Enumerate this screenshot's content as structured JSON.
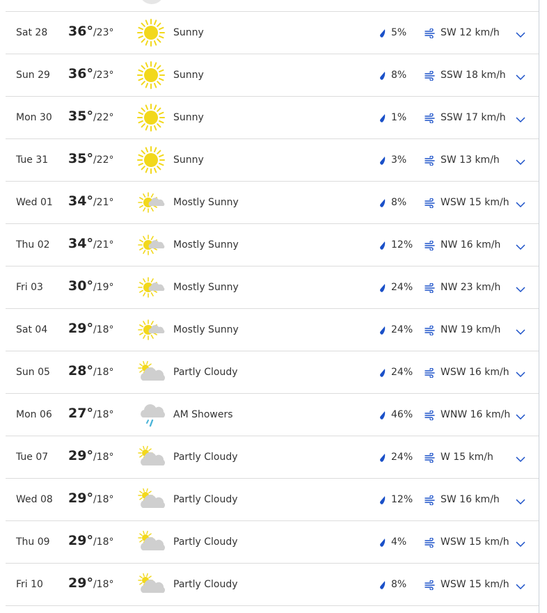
{
  "colors": {
    "accent": "#1a50c8",
    "sun": "#f2d81c",
    "cloud": "#cfcfcf",
    "rain": "#4bb4d8"
  },
  "days": [
    {
      "day": "Sat 28",
      "high": "36°",
      "low": "/23°",
      "icon": "sunny",
      "condition": "Sunny",
      "precip": "5%",
      "wind": "SW 12 km/h"
    },
    {
      "day": "Sun 29",
      "high": "36°",
      "low": "/23°",
      "icon": "sunny",
      "condition": "Sunny",
      "precip": "8%",
      "wind": "SSW 18 km/h"
    },
    {
      "day": "Mon 30",
      "high": "35°",
      "low": "/22°",
      "icon": "sunny",
      "condition": "Sunny",
      "precip": "1%",
      "wind": "SSW 17 km/h"
    },
    {
      "day": "Tue 31",
      "high": "35°",
      "low": "/22°",
      "icon": "sunny",
      "condition": "Sunny",
      "precip": "3%",
      "wind": "SW 13 km/h"
    },
    {
      "day": "Wed 01",
      "high": "34°",
      "low": "/21°",
      "icon": "mostly-sunny",
      "condition": "Mostly Sunny",
      "precip": "8%",
      "wind": "WSW 15 km/h"
    },
    {
      "day": "Thu 02",
      "high": "34°",
      "low": "/21°",
      "icon": "mostly-sunny",
      "condition": "Mostly Sunny",
      "precip": "12%",
      "wind": "NW 16 km/h"
    },
    {
      "day": "Fri 03",
      "high": "30°",
      "low": "/19°",
      "icon": "mostly-sunny",
      "condition": "Mostly Sunny",
      "precip": "24%",
      "wind": "NW 23 km/h"
    },
    {
      "day": "Sat 04",
      "high": "29°",
      "low": "/18°",
      "icon": "mostly-sunny",
      "condition": "Mostly Sunny",
      "precip": "24%",
      "wind": "NW 19 km/h"
    },
    {
      "day": "Sun 05",
      "high": "28°",
      "low": "/18°",
      "icon": "partly-cloudy",
      "condition": "Partly Cloudy",
      "precip": "24%",
      "wind": "WSW 16 km/h"
    },
    {
      "day": "Mon 06",
      "high": "27°",
      "low": "/18°",
      "icon": "showers",
      "condition": "AM Showers",
      "precip": "46%",
      "wind": "WNW 16 km/h"
    },
    {
      "day": "Tue 07",
      "high": "29°",
      "low": "/18°",
      "icon": "partly-cloudy",
      "condition": "Partly Cloudy",
      "precip": "24%",
      "wind": "W 15 km/h"
    },
    {
      "day": "Wed 08",
      "high": "29°",
      "low": "/18°",
      "icon": "partly-cloudy",
      "condition": "Partly Cloudy",
      "precip": "12%",
      "wind": "SW 16 km/h"
    },
    {
      "day": "Thu 09",
      "high": "29°",
      "low": "/18°",
      "icon": "partly-cloudy",
      "condition": "Partly Cloudy",
      "precip": "4%",
      "wind": "WSW 15 km/h"
    },
    {
      "day": "Fri 10",
      "high": "29°",
      "low": "/18°",
      "icon": "partly-cloudy",
      "condition": "Partly Cloudy",
      "precip": "8%",
      "wind": "WSW 15 km/h"
    }
  ]
}
